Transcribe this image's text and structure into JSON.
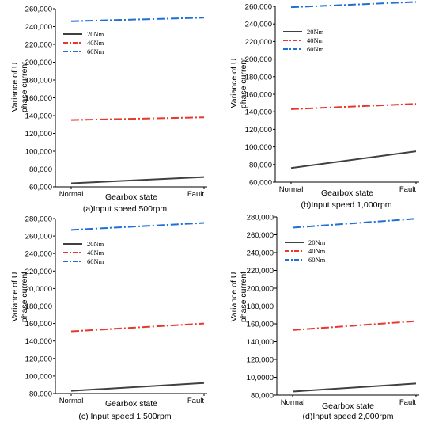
{
  "chart_data": [
    {
      "type": "line",
      "caption": "(a)Input speed 500rpm",
      "xlabel": "Gearbox state",
      "ylabel": "Variance of U phase current",
      "categories": [
        "Normal",
        "Fault"
      ],
      "yticks": [
        "60,000",
        "80,000",
        "100,000",
        "120,000",
        "140,000",
        "160,000",
        "180,000",
        "200,000",
        "220,000",
        "240,000",
        "260,000"
      ],
      "ylim": [
        60000,
        260000
      ],
      "legend_position": "top-left",
      "series": [
        {
          "name": "20Nm",
          "values": [
            64000,
            71000
          ],
          "color": "#404040",
          "dash": "solid"
        },
        {
          "name": "40Nm",
          "values": [
            135000,
            138000
          ],
          "color": "#e8382e",
          "dash": "dashdot"
        },
        {
          "name": "60Nm",
          "values": [
            246000,
            250000
          ],
          "color": "#1f6fd6",
          "dash": "dashdot"
        }
      ]
    },
    {
      "type": "line",
      "caption": "(b)Input speed 1,000rpm",
      "xlabel": "Gearbox state",
      "ylabel": "Variance of U phase current",
      "categories": [
        "Normal",
        "Fault"
      ],
      "yticks": [
        "60,000",
        "80,000",
        "100,000",
        "120,000",
        "140,000",
        "160,000",
        "180,000",
        "200,000",
        "220,000",
        "240,000",
        "260,000"
      ],
      "ylim": [
        60000,
        260000
      ],
      "legend_position": "top-left",
      "series": [
        {
          "name": "20Nm",
          "values": [
            76000,
            95000
          ],
          "color": "#404040",
          "dash": "solid"
        },
        {
          "name": "40Nm",
          "values": [
            143000,
            149000
          ],
          "color": "#e8382e",
          "dash": "dashdot"
        },
        {
          "name": "60Nm",
          "values": [
            259000,
            265000
          ],
          "color": "#1f6fd6",
          "dash": "dashdot"
        }
      ]
    },
    {
      "type": "line",
      "caption": "(c) Input speed 1,500rpm",
      "xlabel": "Gearbox state",
      "ylabel": "Variance of U phase current",
      "categories": [
        "Normal",
        "Fault"
      ],
      "yticks": [
        "80,000",
        "100,000",
        "120,000",
        "140,000",
        "160,000",
        "180,000",
        "20,0000",
        "220,000",
        "240,000",
        "260,000",
        "280,000"
      ],
      "ylim": [
        80000,
        280000
      ],
      "legend_position": "top-left",
      "series": [
        {
          "name": "20Nm",
          "values": [
            83000,
            92000
          ],
          "color": "#404040",
          "dash": "solid"
        },
        {
          "name": "40Nm",
          "values": [
            151000,
            160000
          ],
          "color": "#e8382e",
          "dash": "dashdot"
        },
        {
          "name": "60Nm",
          "values": [
            267000,
            275000
          ],
          "color": "#1f6fd6",
          "dash": "dashdot"
        }
      ]
    },
    {
      "type": "line",
      "caption": "(d)Input speed 2,000rpm",
      "xlabel": "Gearbox state",
      "ylabel": "Variance of U phase current",
      "categories": [
        "Normal",
        "Fault"
      ],
      "yticks": [
        "80,000",
        "10,0000",
        "120,000",
        "140,000",
        "160,000",
        "180,000",
        "200,000",
        "220,000",
        "240,000",
        "260,000",
        "280,000"
      ],
      "ylim": [
        80000,
        280000
      ],
      "legend_position": "top-left",
      "series": [
        {
          "name": "20Nm",
          "values": [
            84000,
            93000
          ],
          "color": "#404040",
          "dash": "solid"
        },
        {
          "name": "40Nm",
          "values": [
            153000,
            163000
          ],
          "color": "#e8382e",
          "dash": "dashdot"
        },
        {
          "name": "60Nm",
          "values": [
            268000,
            278000
          ],
          "color": "#1f6fd6",
          "dash": "dashdot"
        }
      ]
    }
  ]
}
